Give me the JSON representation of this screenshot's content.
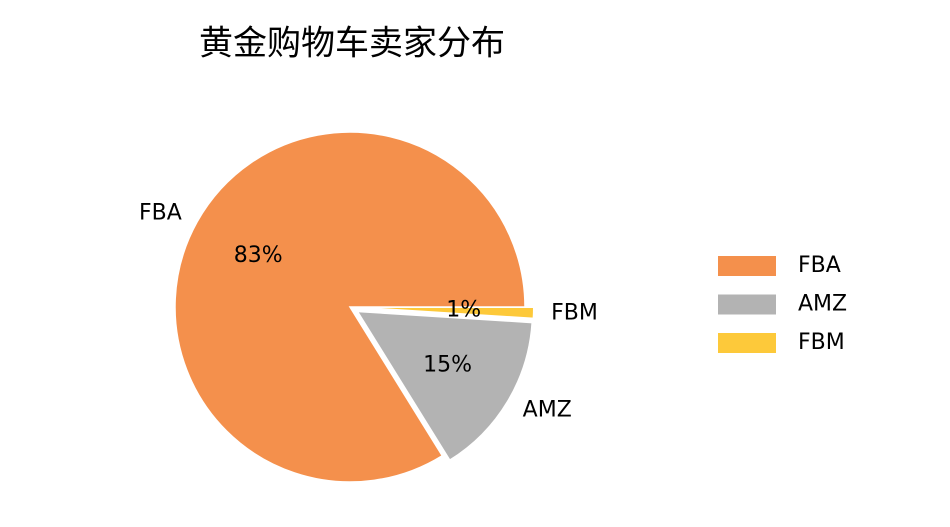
{
  "chart_data": {
    "type": "pie",
    "title": "黄金购物车卖家分布",
    "categories": [
      "FBA",
      "AMZ",
      "FBM"
    ],
    "values": [
      83,
      15,
      1
    ],
    "value_labels": [
      "83%",
      "15%",
      "1%"
    ],
    "colors": [
      "#f4904c",
      "#b3b3b3",
      "#fdc93a"
    ],
    "explode": [
      0,
      0.05,
      0.05
    ],
    "legend": "right"
  }
}
